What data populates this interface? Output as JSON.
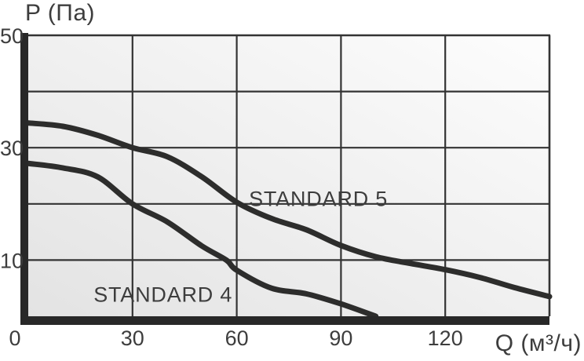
{
  "chart_data": {
    "type": "line",
    "title": "",
    "ylabel": "P (Па)",
    "xlabel": "Q (м³/ч)",
    "xlim": [
      0,
      150
    ],
    "ylim": [
      0,
      50
    ],
    "grid_on": true,
    "legend_position": "on-curve",
    "x_ticks": [
      {
        "value": 0,
        "label": "0"
      },
      {
        "value": 30,
        "label": "30"
      },
      {
        "value": 60,
        "label": "60"
      },
      {
        "value": 90,
        "label": "90"
      },
      {
        "value": 120,
        "label": "120"
      }
    ],
    "y_ticks": [
      {
        "value": 10,
        "label": "10"
      },
      {
        "value": 30,
        "label": "30"
      },
      {
        "value": 50,
        "label": "50"
      }
    ],
    "grid": {
      "x_values": [
        30,
        60,
        90,
        120
      ],
      "y_values": [
        10,
        20,
        30,
        40
      ]
    },
    "series": [
      {
        "name": "STANDARD 5",
        "label_pos": {
          "q": 63.5,
          "p": 19.6
        },
        "points": [
          [
            0,
            34.4
          ],
          [
            10,
            33.8
          ],
          [
            20,
            32.2
          ],
          [
            30,
            30
          ],
          [
            40,
            28.4
          ],
          [
            50,
            24.8
          ],
          [
            60,
            20.3
          ],
          [
            70,
            17.4
          ],
          [
            80,
            15.4
          ],
          [
            90,
            12.6
          ],
          [
            100,
            10.6
          ],
          [
            110,
            9.4
          ],
          [
            120,
            8.3
          ],
          [
            130,
            6.9
          ],
          [
            140,
            5.1
          ],
          [
            150,
            3.5
          ]
        ]
      },
      {
        "name": "STANDARD 4",
        "label_pos": {
          "q": 18.8,
          "p": 2.6
        },
        "points": [
          [
            0,
            27.2
          ],
          [
            10,
            26.4
          ],
          [
            20,
            24.8
          ],
          [
            30,
            20
          ],
          [
            40,
            16.8
          ],
          [
            50,
            12.5
          ],
          [
            57,
            10
          ],
          [
            60,
            8.2
          ],
          [
            70,
            5
          ],
          [
            80,
            4
          ],
          [
            90,
            2.2
          ],
          [
            100,
            0
          ]
        ]
      }
    ],
    "colors": {
      "curve": "#2d2d2c",
      "grid": "#333333",
      "axis": "#282828",
      "text": "#3d3d3d",
      "plot_bg_from": "#e3e3e3",
      "plot_bg_to": "#fdfdfd"
    }
  }
}
